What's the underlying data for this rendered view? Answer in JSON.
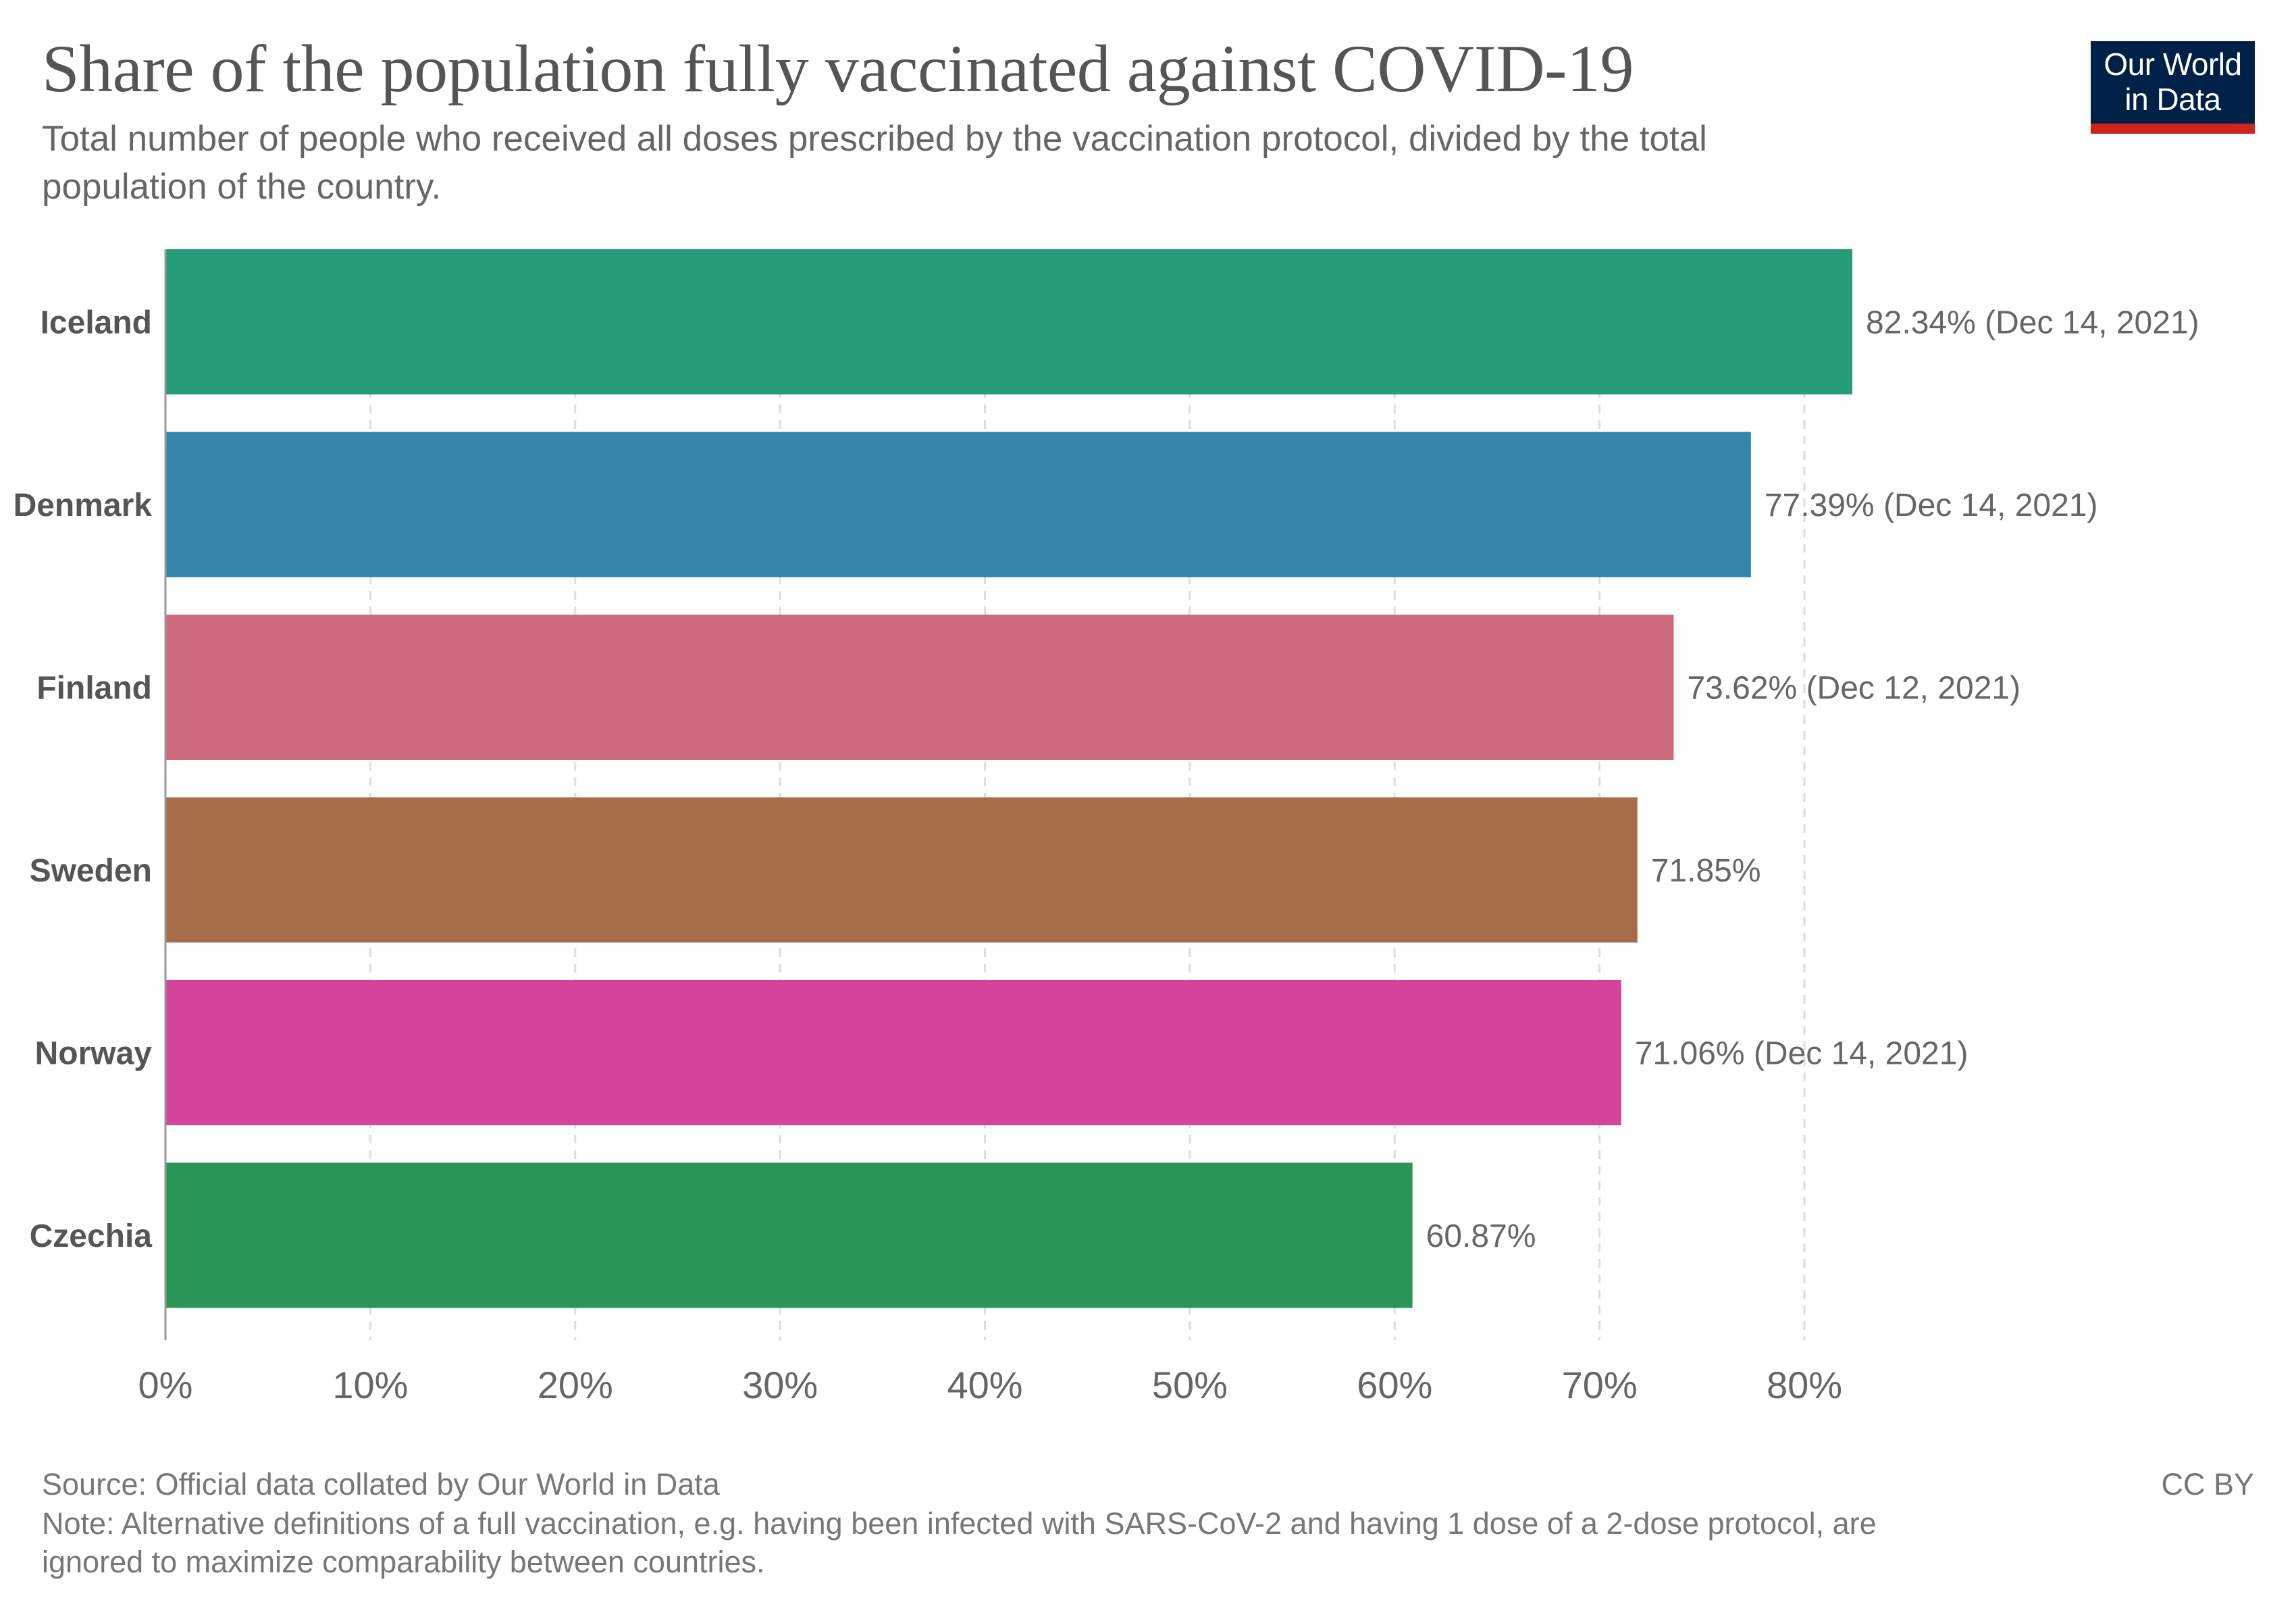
{
  "header": {
    "title": "Share of the population fully vaccinated against COVID-19",
    "subtitle_line1": "Total number of people who received all doses prescribed by the vaccination protocol, divided by the total",
    "subtitle_line2": "population of the country.",
    "logo_line1": "Our World",
    "logo_line2": "in Data"
  },
  "footer": {
    "source": "Source: Official data collated by Our World in Data",
    "license": "CC BY",
    "note_line1": "Note: Alternative definitions of a full vaccination, e.g. having been infected with SARS-CoV-2 and having 1 dose of a 2-dose protocol, are",
    "note_line2": "ignored to maximize comparability between countries."
  },
  "colors": {
    "logo_background": "#002147",
    "logo_accent": "#ce261e"
  },
  "chart_data": {
    "type": "bar",
    "orientation": "horizontal",
    "title": "Share of the population fully vaccinated against COVID-19",
    "xlabel": "",
    "ylabel": "",
    "xlim": [
      0,
      80
    ],
    "grid": true,
    "x_ticks": [
      0,
      10,
      20,
      30,
      40,
      50,
      60,
      70,
      80
    ],
    "x_tick_labels": [
      "0%",
      "10%",
      "20%",
      "30%",
      "40%",
      "50%",
      "60%",
      "70%",
      "80%"
    ],
    "categories": [
      "Iceland",
      "Denmark",
      "Finland",
      "Sweden",
      "Norway",
      "Czechia"
    ],
    "values": [
      82.34,
      77.39,
      73.62,
      71.85,
      71.06,
      60.87
    ],
    "value_labels": [
      "82.34% (Dec 14, 2021)",
      "77.39% (Dec 14, 2021)",
      "73.62% (Dec 12, 2021)",
      "71.85%",
      "71.06% (Dec 14, 2021)",
      "60.87%"
    ],
    "bar_colors": [
      "#279c78",
      "#3487ab",
      "#cd6b7c",
      "#a66d4b",
      "#d4449a",
      "#2a9557"
    ]
  }
}
